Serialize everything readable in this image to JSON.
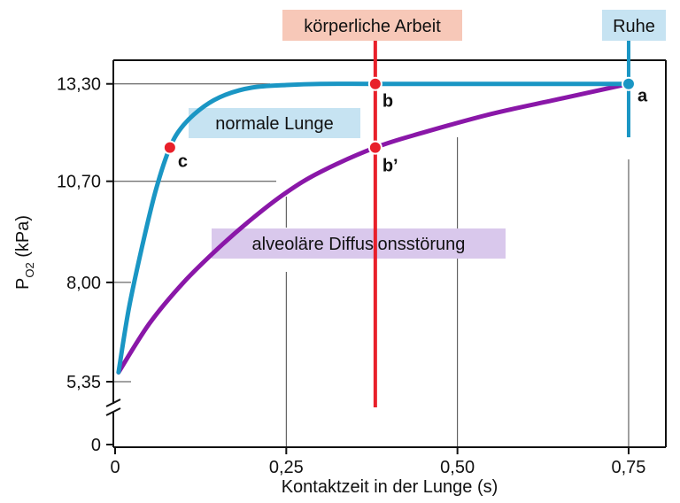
{
  "chart_data": {
    "type": "line",
    "xlabel": "Kontaktzeit in der Lunge (s)",
    "ylabel": "P",
    "ylabel_sub": "O2",
    "ylabel_unit": "(kPa)",
    "xlim": [
      0,
      0.8
    ],
    "x_ticks": [
      {
        "value": 0,
        "label": "0"
      },
      {
        "value": 0.25,
        "label": "0,25"
      },
      {
        "value": 0.5,
        "label": "0,50"
      },
      {
        "value": 0.75,
        "label": "0,75"
      }
    ],
    "y_ticks": [
      {
        "value": 0,
        "label": "0"
      },
      {
        "value": 5.35,
        "label": "5,35"
      },
      {
        "value": 8.0,
        "label": "8,00"
      },
      {
        "value": 10.7,
        "label": "10,70"
      },
      {
        "value": 13.3,
        "label": "13,30"
      }
    ],
    "y_axis_break": true,
    "series": [
      {
        "name": "normale Lunge",
        "color": "#1a96c4",
        "x": [
          0.005,
          0.02,
          0.04,
          0.06,
          0.08,
          0.1,
          0.13,
          0.16,
          0.2,
          0.25,
          0.3,
          0.38,
          0.5,
          0.6,
          0.75
        ],
        "y": [
          5.6,
          7.3,
          9.0,
          10.5,
          11.6,
          12.2,
          12.7,
          13.0,
          13.2,
          13.27,
          13.3,
          13.3,
          13.3,
          13.3,
          13.3
        ]
      },
      {
        "name": "alveoläre Diffusionsstörung",
        "color": "#8a17a8",
        "x": [
          0.005,
          0.05,
          0.1,
          0.15,
          0.2,
          0.25,
          0.3,
          0.38,
          0.45,
          0.55,
          0.65,
          0.75
        ],
        "y": [
          5.6,
          6.9,
          8.0,
          8.9,
          9.7,
          10.4,
          10.95,
          11.6,
          12.0,
          12.5,
          12.9,
          13.3
        ]
      }
    ],
    "vertical_lines": [
      {
        "label": "körperliche Arbeit",
        "x": 0.38,
        "color": "#e8202a",
        "tag_bg": "#f7c8b8",
        "y_from": 3.8,
        "y_to": 15.0
      },
      {
        "label": "Ruhe",
        "x": 0.75,
        "color": "#1a96c4",
        "tag_bg": "#c6e3f2",
        "y_from": 11.9,
        "y_to": 15.0
      }
    ],
    "series_tags": [
      {
        "text": "normale Lunge",
        "bg": "#c6e3f2"
      },
      {
        "text": "alveoläre Diffusionsstörung",
        "bg": "#d9c8ec"
      }
    ],
    "points": [
      {
        "label": "a",
        "x": 0.75,
        "y": 13.3,
        "color": "#1a96c4"
      },
      {
        "label": "b",
        "x": 0.38,
        "y": 13.3,
        "color": "#e8202a"
      },
      {
        "label": "b’",
        "x": 0.38,
        "y": 11.6,
        "color": "#e8202a"
      },
      {
        "label": "c",
        "x": 0.08,
        "y": 11.6,
        "color": "#e8202a"
      }
    ],
    "grid": "partial-vertical"
  }
}
